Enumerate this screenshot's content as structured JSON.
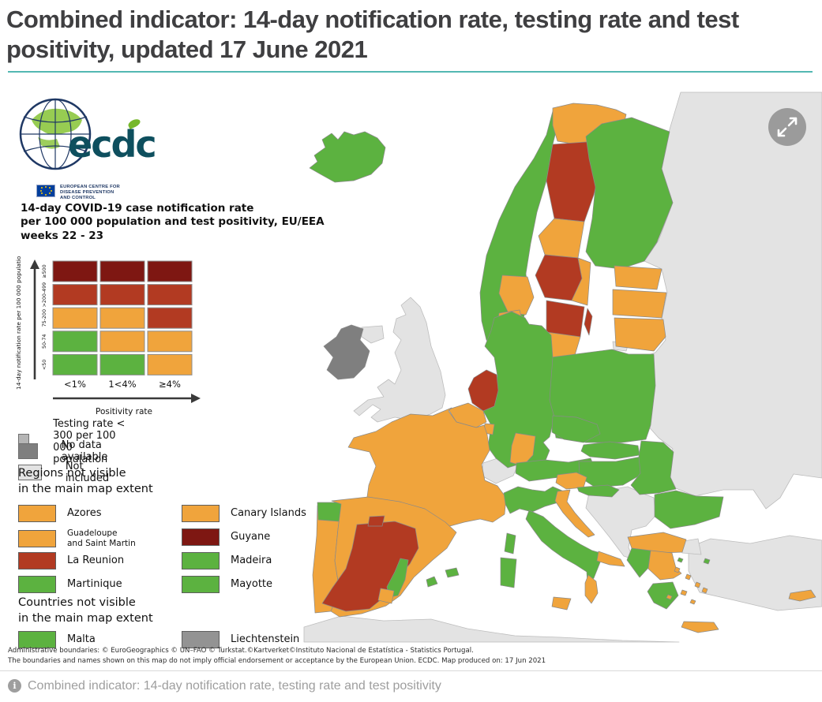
{
  "header": {
    "title": "Combined indicator: 14-day notification rate, testing rate and test positivity, updated 17 June 2021"
  },
  "logo": {
    "wordmark": "ecdc",
    "org_lines": [
      "EUROPEAN CENTRE FOR",
      "DISEASE PREVENTION",
      "AND CONTROL"
    ]
  },
  "colors": {
    "green": "#5cb240",
    "orange": "#f0a43c",
    "red": "#b23a22",
    "darkred": "#7e1712",
    "notIncluded": "#e3e3e3",
    "noData": "#7f7f7f",
    "testingLow": "#b5b5b5",
    "liechtenstein": "#939393",
    "teal": "#53b8b2"
  },
  "legend": {
    "title_lines": [
      "14-day COVID-19 case notification rate",
      "per 100 000 population and test positivity, EU/EEA",
      "weeks 22 - 23"
    ],
    "matrix": {
      "y_axis_label": "14-day notification rate per 100 000 population",
      "x_axis_label": "Positivity rate",
      "row_labels": [
        "≥500",
        ">200-499",
        "75-200",
        "50-74",
        "<50"
      ],
      "col_labels": [
        "<1%",
        "1<4%",
        "≥4%"
      ],
      "cells": [
        [
          "darkred",
          "darkred",
          "darkred"
        ],
        [
          "red",
          "red",
          "red"
        ],
        [
          "orange",
          "orange",
          "red"
        ],
        [
          "green",
          "orange",
          "orange"
        ],
        [
          "green",
          "green",
          "orange"
        ]
      ]
    },
    "status_items": [
      {
        "label": "Testing rate < 300 per 100 000 population",
        "color": "testingLow"
      },
      {
        "label": "No data available",
        "color": "noData"
      },
      {
        "label": "Not included",
        "color": "notIncluded"
      }
    ],
    "regions_heading_lines": [
      "Regions not visible",
      "in the main map extent"
    ],
    "regions": [
      {
        "label": "Azores",
        "color": "orange",
        "small": false
      },
      {
        "label": "Canary Islands",
        "color": "orange",
        "small": false
      },
      {
        "label": "Guadeloupe\nand Saint Martin",
        "color": "orange",
        "small": true
      },
      {
        "label": "Guyane",
        "color": "darkred",
        "small": false
      },
      {
        "label": "La Reunion",
        "color": "red",
        "small": false
      },
      {
        "label": "Madeira",
        "color": "green",
        "small": false
      },
      {
        "label": "Martinique",
        "color": "green",
        "small": false
      },
      {
        "label": "Mayotte",
        "color": "green",
        "small": false
      }
    ],
    "countries_heading_lines": [
      "Countries not visible",
      "in the main map extent"
    ],
    "countries": [
      {
        "label": "Malta",
        "color": "green"
      },
      {
        "label": "Liechtenstein",
        "color": "liechtenstein"
      }
    ]
  },
  "map": {
    "regions": [
      {
        "name": "russia-east",
        "color": "notIncluded"
      },
      {
        "name": "turkey",
        "color": "notIncluded"
      },
      {
        "name": "turkey-eu",
        "color": "notIncluded"
      },
      {
        "name": "north-africa",
        "color": "notIncluded"
      },
      {
        "name": "great-britain",
        "color": "notIncluded"
      },
      {
        "name": "northern-ireland",
        "color": "notIncluded"
      },
      {
        "name": "ireland",
        "color": "noData"
      },
      {
        "name": "switzerland",
        "color": "notIncluded"
      },
      {
        "name": "western-balkans",
        "color": "notIncluded"
      },
      {
        "name": "kaliningrad",
        "color": "notIncluded"
      },
      {
        "name": "iceland",
        "color": "green"
      },
      {
        "name": "norway",
        "color": "green"
      },
      {
        "name": "norway-finnmark",
        "color": "orange"
      },
      {
        "name": "norway-south",
        "color": "orange"
      },
      {
        "name": "sweden-north",
        "color": "red"
      },
      {
        "name": "sweden-mid",
        "color": "orange"
      },
      {
        "name": "sweden-mid2",
        "color": "red"
      },
      {
        "name": "sweden-east",
        "color": "orange"
      },
      {
        "name": "sweden-south",
        "color": "red"
      },
      {
        "name": "sweden-skane",
        "color": "orange"
      },
      {
        "name": "gotland",
        "color": "red"
      },
      {
        "name": "finland",
        "color": "green"
      },
      {
        "name": "denmark",
        "color": "orange"
      },
      {
        "name": "denmark-isles",
        "color": "orange"
      },
      {
        "name": "estonia",
        "color": "orange"
      },
      {
        "name": "latvia",
        "color": "orange"
      },
      {
        "name": "lithuania",
        "color": "orange"
      },
      {
        "name": "poland",
        "color": "green"
      },
      {
        "name": "germany",
        "color": "green"
      },
      {
        "name": "germany-sw",
        "color": "orange"
      },
      {
        "name": "netherlands",
        "color": "red"
      },
      {
        "name": "belgium",
        "color": "orange"
      },
      {
        "name": "luxembourg",
        "color": "orange"
      },
      {
        "name": "france",
        "color": "orange"
      },
      {
        "name": "corsica",
        "color": "green"
      },
      {
        "name": "portugal",
        "color": "orange"
      },
      {
        "name": "portugal-norte",
        "color": "green"
      },
      {
        "name": "spain",
        "color": "orange"
      },
      {
        "name": "spain-center",
        "color": "red"
      },
      {
        "name": "spain-rioja",
        "color": "red"
      },
      {
        "name": "valencia",
        "color": "green"
      },
      {
        "name": "murcia",
        "color": "orange"
      },
      {
        "name": "balearic-mallorca",
        "color": "green"
      },
      {
        "name": "balearic-menorca",
        "color": "green"
      },
      {
        "name": "italy-north",
        "color": "green"
      },
      {
        "name": "italy-peninsula",
        "color": "green"
      },
      {
        "name": "puglia",
        "color": "orange"
      },
      {
        "name": "calabria",
        "color": "orange"
      },
      {
        "name": "sicily",
        "color": "orange"
      },
      {
        "name": "sardinia",
        "color": "green"
      },
      {
        "name": "austria",
        "color": "green"
      },
      {
        "name": "czechia",
        "color": "green"
      },
      {
        "name": "slovakia",
        "color": "green"
      },
      {
        "name": "hungary",
        "color": "green"
      },
      {
        "name": "slovenia",
        "color": "orange"
      },
      {
        "name": "croatia-inland",
        "color": "green"
      },
      {
        "name": "croatia-coast",
        "color": "orange"
      },
      {
        "name": "romania",
        "color": "green"
      },
      {
        "name": "bulgaria",
        "color": "green"
      },
      {
        "name": "greece-north",
        "color": "orange"
      },
      {
        "name": "greece-west",
        "color": "green"
      },
      {
        "name": "greece-central",
        "color": "orange"
      },
      {
        "name": "peloponnese",
        "color": "green"
      },
      {
        "name": "crete",
        "color": "orange"
      },
      {
        "name": "cyprus",
        "color": "orange"
      },
      {
        "name": "aegean-islands-orange",
        "color": "orange"
      },
      {
        "name": "aegean-islands-green",
        "color": "green"
      }
    ]
  },
  "footer": {
    "line1": "Administrative boundaries: © EuroGeographics © UN–FAO © Turkstat.©Kartverket©Instituto Nacional de Estatística - Statistics Portugal.",
    "line2": "The boundaries and names shown on this map do not imply official endorsement or acceptance by the European Union. ECDC. Map produced on: 17 Jun 2021"
  },
  "caption": {
    "icon_glyph": "i",
    "text": "Combined indicator: 14-day notification rate, testing rate and test positivity"
  }
}
